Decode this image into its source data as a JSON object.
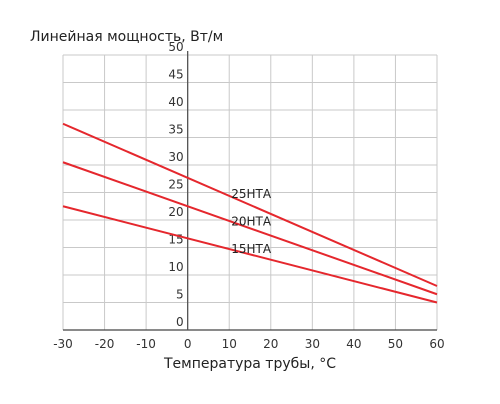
{
  "chart_data": {
    "type": "line",
    "title": "",
    "ylabel": "Линейная мощность, Вт/м",
    "xlabel": "Температура трубы, °C",
    "xlim": [
      -30,
      60
    ],
    "ylim": [
      0,
      50
    ],
    "x_ticks": [
      -30,
      -20,
      -10,
      0,
      10,
      20,
      30,
      40,
      50,
      60
    ],
    "x_tick_labels": [
      "-30",
      "-20",
      "-10",
      "0",
      "10",
      "20",
      "30",
      "40",
      "50",
      "60"
    ],
    "y_ticks": [
      0,
      5,
      10,
      15,
      20,
      25,
      30,
      35,
      40,
      45,
      50
    ],
    "y_tick_labels": [
      "0",
      "5",
      "10",
      "15",
      "20",
      "25",
      "30",
      "35",
      "40",
      "45",
      "50"
    ],
    "grid": true,
    "series_color": "#e5272d",
    "series": [
      {
        "name": "25НТА",
        "x": [
          -30,
          60
        ],
        "y": [
          37.5,
          8
        ]
      },
      {
        "name": "20НТА",
        "x": [
          -30,
          60
        ],
        "y": [
          30.5,
          6.5
        ]
      },
      {
        "name": "15НТА",
        "x": [
          -30,
          60
        ],
        "y": [
          22.5,
          5
        ]
      }
    ],
    "series_label_positions_data": [
      {
        "x": 10,
        "y": 24
      },
      {
        "x": 10,
        "y": 19
      },
      {
        "x": 10,
        "y": 14
      }
    ]
  }
}
